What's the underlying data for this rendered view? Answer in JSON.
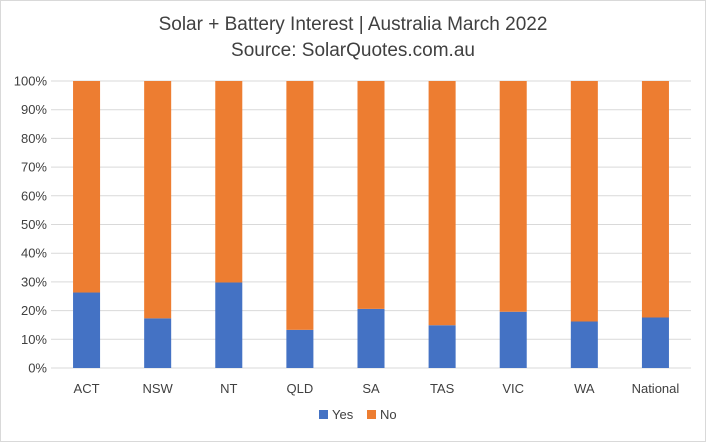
{
  "chart_data": {
    "type": "bar",
    "stacked": true,
    "title": "Solar + Battery Interest | Australia March 2022",
    "subtitle": "Source: SolarQuotes.com.au",
    "categories": [
      "ACT",
      "NSW",
      "NT",
      "QLD",
      "SA",
      "TAS",
      "VIC",
      "WA",
      "National"
    ],
    "series": [
      {
        "name": "Yes",
        "color": "#4472c4",
        "values": [
          26.3,
          17.3,
          29.8,
          13.3,
          20.6,
          14.9,
          19.6,
          16.2,
          17.6
        ]
      },
      {
        "name": "No",
        "color": "#ed7d31",
        "values": [
          73.7,
          82.7,
          70.2,
          86.7,
          79.4,
          85.1,
          80.4,
          83.8,
          82.4
        ]
      }
    ],
    "ylim": [
      0,
      100
    ],
    "yticks": [
      "0%",
      "10%",
      "20%",
      "30%",
      "40%",
      "50%",
      "60%",
      "70%",
      "80%",
      "90%",
      "100%"
    ],
    "xlabel": "",
    "ylabel": "",
    "grid": true,
    "legend": "bottom"
  }
}
